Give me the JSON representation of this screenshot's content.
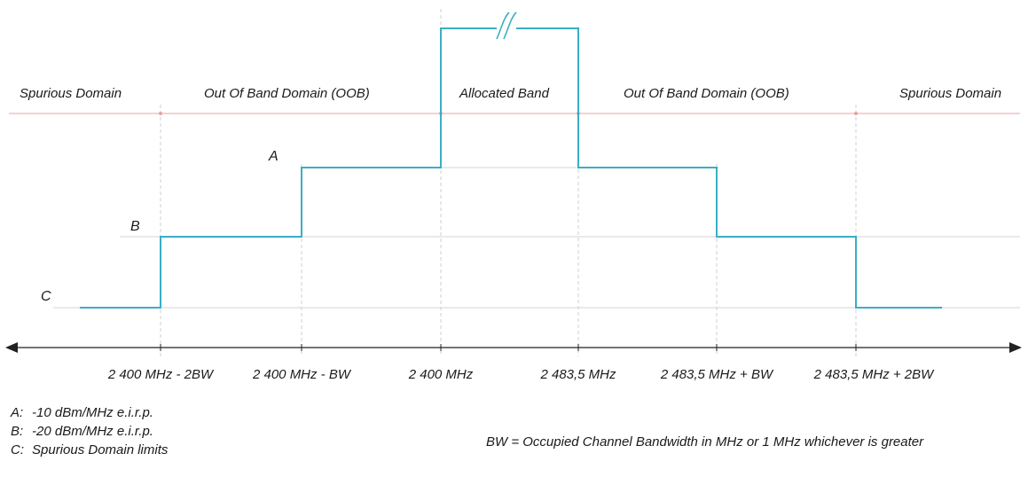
{
  "domains": {
    "spurious_left": "Spurious Domain",
    "oob_left": "Out Of Band Domain (OOB)",
    "allocated": "Allocated Band",
    "oob_right": "Out Of Band Domain (OOB)",
    "spurious_right": "Spurious Domain"
  },
  "levels": {
    "a": "A",
    "b": "B",
    "c": "C"
  },
  "axis_labels": [
    "2 400 MHz - 2BW",
    "2 400 MHz - BW",
    "2 400 MHz",
    "2 483,5 MHz",
    "2 483,5 MHz + BW",
    "2 483,5 MHz + 2BW"
  ],
  "legend": [
    {
      "key": "A:",
      "text": "-10 dBm/MHz e.i.r.p."
    },
    {
      "key": "B:",
      "text": "-20 dBm/MHz e.i.r.p."
    },
    {
      "key": "C:",
      "text": "Spurious Domain limits"
    }
  ],
  "note": "BW = Occupied Channel Bandwidth in MHz or 1 MHz whichever is greater",
  "colors": {
    "mask": "#3aaec5",
    "domain_line": "#e8a3a3",
    "guide": "#cfcfcf",
    "axis": "#222222"
  }
}
